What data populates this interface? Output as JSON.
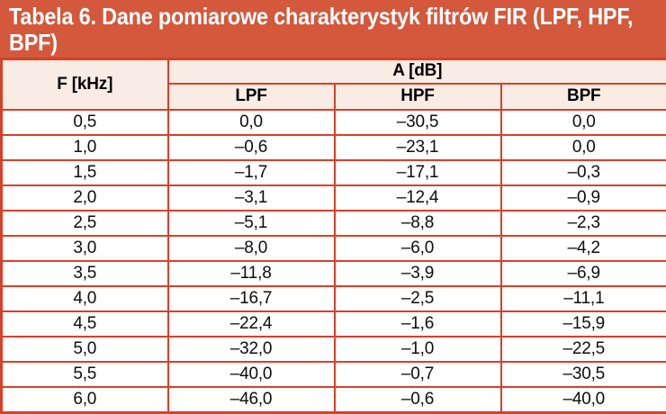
{
  "title": "Tabela 6. Dane pomiarowe charakterystyk filtrów FIR (LPF, HPF, BPF)",
  "columns": {
    "f": "F [kHz]",
    "a_group": "A [dB]",
    "lpf": "LPF",
    "hpf": "HPF",
    "bpf": "BPF"
  },
  "rows": [
    {
      "f": "0,5",
      "lpf": "0,0",
      "hpf": "–30,5",
      "bpf": "0,0"
    },
    {
      "f": "1,0",
      "lpf": "–0,6",
      "hpf": "–23,1",
      "bpf": "0,0"
    },
    {
      "f": "1,5",
      "lpf": "–1,7",
      "hpf": "–17,1",
      "bpf": "–0,3"
    },
    {
      "f": "2,0",
      "lpf": "–3,1",
      "hpf": "–12,4",
      "bpf": "–0,9"
    },
    {
      "f": "2,5",
      "lpf": "–5,1",
      "hpf": "–8,8",
      "bpf": "–2,3"
    },
    {
      "f": "3,0",
      "lpf": "–8,0",
      "hpf": "–6,0",
      "bpf": "–4,2"
    },
    {
      "f": "3,5",
      "lpf": "–11,8",
      "hpf": "–3,9",
      "bpf": "–6,9"
    },
    {
      "f": "4,0",
      "lpf": "–16,7",
      "hpf": "–2,5",
      "bpf": "–11,1"
    },
    {
      "f": "4,5",
      "lpf": "–22,4",
      "hpf": "–1,6",
      "bpf": "–15,9"
    },
    {
      "f": "5,0",
      "lpf": "–32,0",
      "hpf": "–1,0",
      "bpf": "–22,5"
    },
    {
      "f": "5,5",
      "lpf": "–40,0",
      "hpf": "–0,7",
      "bpf": "–30,5"
    },
    {
      "f": "6,0",
      "lpf": "–46,0",
      "hpf": "–0,6",
      "bpf": "–40,0"
    }
  ],
  "colors": {
    "title_bg": "#d3583c",
    "title_text": "#ffffff",
    "grid": "#da3f28",
    "header_bg": "#f9ece4",
    "row_bg": "#ffffff",
    "body_text": "#0d0d0d"
  },
  "chart_data": {
    "type": "table",
    "title": "Tabela 6. Dane pomiarowe charakterystyk filtrów FIR (LPF, HPF, BPF)",
    "xlabel": "F [kHz]",
    "ylabel": "A [dB]",
    "x": [
      0.5,
      1.0,
      1.5,
      2.0,
      2.5,
      3.0,
      3.5,
      4.0,
      4.5,
      5.0,
      5.5,
      6.0
    ],
    "series": [
      {
        "name": "LPF",
        "values": [
          0.0,
          -0.6,
          -1.7,
          -3.1,
          -5.1,
          -8.0,
          -11.8,
          -16.7,
          -22.4,
          -32.0,
          -40.0,
          -46.0
        ]
      },
      {
        "name": "HPF",
        "values": [
          -30.5,
          -23.1,
          -17.1,
          -12.4,
          -8.8,
          -6.0,
          -3.9,
          -2.5,
          -1.6,
          -1.0,
          -0.7,
          -0.6
        ]
      },
      {
        "name": "BPF",
        "values": [
          0.0,
          0.0,
          -0.3,
          -0.9,
          -2.3,
          -4.2,
          -6.9,
          -11.1,
          -15.9,
          -22.5,
          -30.5,
          -40.0
        ]
      }
    ]
  }
}
